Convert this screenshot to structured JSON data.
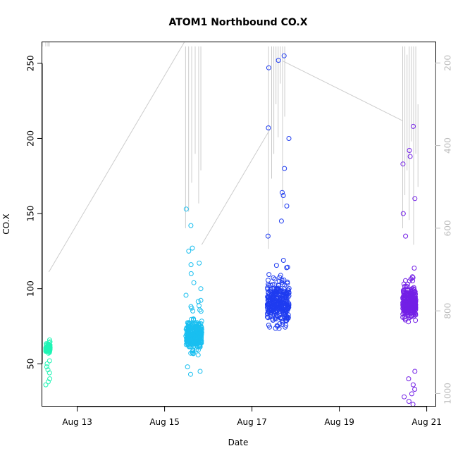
{
  "chart_data": {
    "type": "scatter",
    "title": "ATOM1 Northbound CO.X",
    "xlabel": "Date",
    "ylabel": "CO.X",
    "x_ticks": [
      "Aug 13",
      "Aug 15",
      "Aug 17",
      "Aug 19",
      "Aug 21"
    ],
    "x_tick_values": [
      13,
      15,
      17,
      19,
      21
    ],
    "x_range": [
      12.2,
      21.2
    ],
    "y_ticks": [
      50,
      100,
      150,
      200,
      250
    ],
    "ylim": [
      22,
      264
    ],
    "y2_ticks": [
      200,
      400,
      600,
      800,
      1000
    ],
    "y2lim": [
      1030,
      150
    ],
    "grid": false,
    "legend": "none",
    "colors": {
      "cluster1": "#1ff5b5",
      "cluster2": "#19bff0",
      "cluster3": "#1f3cf0",
      "cluster4": "#7320e6",
      "overlay_line": "#cccccc"
    },
    "clusters": [
      {
        "t0": 12.28,
        "t1": 12.38,
        "n": 110,
        "mean": 60,
        "sd": 3,
        "min": 35,
        "max": 66,
        "outliers": [
          36,
          38,
          40,
          44,
          46,
          48,
          50,
          52
        ]
      },
      {
        "t0": 15.48,
        "t1": 15.85,
        "n": 260,
        "mean": 68,
        "sd": 14,
        "min": 42,
        "max": 153,
        "outliers": [
          43,
          45,
          48,
          100,
          104,
          110,
          116,
          117,
          125,
          127,
          142,
          153
        ]
      },
      {
        "t0": 17.35,
        "t1": 17.85,
        "n": 300,
        "mean": 90,
        "sd": 18,
        "min": 59,
        "max": 255,
        "outliers": [
          135,
          145,
          155,
          162,
          164,
          180,
          200,
          207,
          247,
          252,
          255
        ]
      },
      {
        "t0": 20.45,
        "t1": 20.75,
        "n": 320,
        "mean": 90,
        "sd": 12,
        "min": 23,
        "max": 208,
        "outliers": [
          23,
          25,
          28,
          30,
          33,
          36,
          40,
          45,
          135,
          150,
          160,
          183,
          188,
          192,
          208
        ]
      }
    ],
    "overlay_series": {
      "axis": "right",
      "lines": [
        {
          "x": [
            12.35,
            15.45
          ],
          "y": [
            706,
            130
          ]
        },
        {
          "x": [
            15.85,
            17.4
          ],
          "y": [
            640,
            363
          ]
        },
        {
          "x": [
            17.7,
            20.45
          ],
          "y": [
            195,
            340
          ]
        }
      ],
      "spikes": [
        {
          "x": 12.2,
          "from": 80,
          "to": 160
        },
        {
          "x": 12.28,
          "from": 40,
          "to": 160
        },
        {
          "x": 12.33,
          "from": 100,
          "to": 160
        },
        {
          "x": 12.36,
          "from": 150,
          "to": 160
        },
        {
          "x": 15.48,
          "from": 160,
          "to": 600
        },
        {
          "x": 15.55,
          "from": 160,
          "to": 560
        },
        {
          "x": 15.62,
          "from": 160,
          "to": 490
        },
        {
          "x": 15.7,
          "from": 160,
          "to": 420
        },
        {
          "x": 15.78,
          "from": 160,
          "to": 540
        },
        {
          "x": 15.83,
          "from": 160,
          "to": 460
        },
        {
          "x": 17.38,
          "from": 160,
          "to": 650
        },
        {
          "x": 17.45,
          "from": 160,
          "to": 480
        },
        {
          "x": 17.5,
          "from": 160,
          "to": 420
        },
        {
          "x": 17.55,
          "from": 160,
          "to": 300
        },
        {
          "x": 17.6,
          "from": 160,
          "to": 380
        },
        {
          "x": 17.65,
          "from": 160,
          "to": 250
        },
        {
          "x": 17.7,
          "from": 160,
          "to": 550
        },
        {
          "x": 17.75,
          "from": 160,
          "to": 330
        },
        {
          "x": 20.45,
          "from": 160,
          "to": 600
        },
        {
          "x": 20.5,
          "from": 160,
          "to": 520
        },
        {
          "x": 20.55,
          "from": 180,
          "to": 460
        },
        {
          "x": 20.6,
          "from": 160,
          "to": 580
        },
        {
          "x": 20.65,
          "from": 160,
          "to": 390
        },
        {
          "x": 20.7,
          "from": 160,
          "to": 640
        },
        {
          "x": 20.75,
          "from": 160,
          "to": 420
        },
        {
          "x": 20.8,
          "from": 300,
          "to": 500
        }
      ]
    }
  }
}
